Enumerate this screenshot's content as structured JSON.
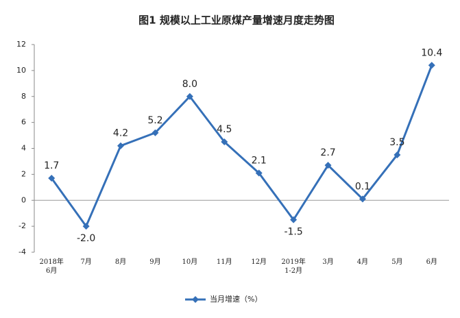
{
  "chart_data": {
    "type": "line",
    "title": "图1  规模以上工业原煤产量增速月度走势图",
    "categories": [
      "2018年\n6月",
      "7月",
      "8月",
      "9月",
      "10月",
      "11月",
      "12月",
      "2019年\n1-2月",
      "3月",
      "4月",
      "5月",
      "6月"
    ],
    "series": [
      {
        "name": "当月增速（%）",
        "color": "#3570b8",
        "values": [
          1.7,
          -2.0,
          4.2,
          5.2,
          8.0,
          4.5,
          2.1,
          -1.5,
          2.7,
          0.1,
          3.5,
          10.4
        ],
        "value_labels": [
          "1.7",
          "-2.0",
          "4.2",
          "5.2",
          "8.0",
          "4.5",
          "2.1",
          "-1.5",
          "2.7",
          "0.1",
          "3.5",
          "10.4"
        ]
      }
    ],
    "ylim": [
      -4,
      12
    ],
    "yticks": [
      -4,
      -2,
      0,
      2,
      4,
      6,
      8,
      10,
      12
    ],
    "grid": false,
    "legend": "bottom"
  }
}
